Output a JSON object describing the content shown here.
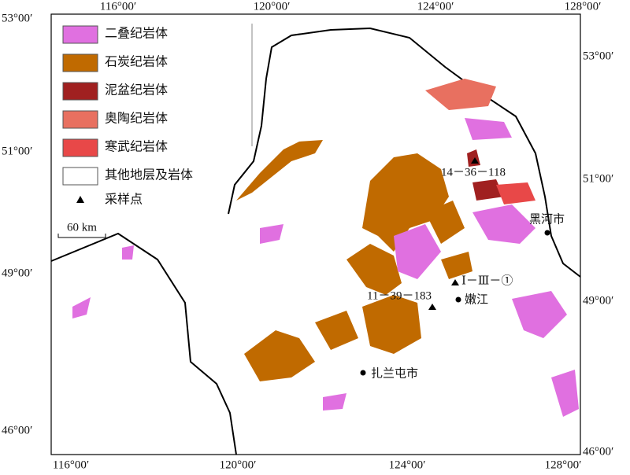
{
  "frame": {
    "top_labels": [
      "116°00′",
      "120°00′",
      "124°00′",
      "128°00′"
    ],
    "bottom_labels": [
      "116°00′",
      "120°00′",
      "124°00′",
      "128°00′"
    ],
    "left_labels": [
      "53°00′",
      "51°00′",
      "49°00′",
      "46°00′"
    ],
    "right_labels": [
      "53°00′",
      "51°00′",
      "49°00′",
      "46°00′"
    ]
  },
  "legend": [
    "二叠纪岩体",
    "石炭纪岩体",
    "泥盆纪岩体",
    "奥陶纪岩体",
    "寒武纪岩体",
    "其他地层及岩体",
    "采样点"
  ],
  "scale": "60 km",
  "places": [
    "14－36－118",
    "黑河市",
    "Ⅰ－Ⅲ－①",
    "11－39－183",
    "嫩江",
    "扎兰屯市"
  ]
}
